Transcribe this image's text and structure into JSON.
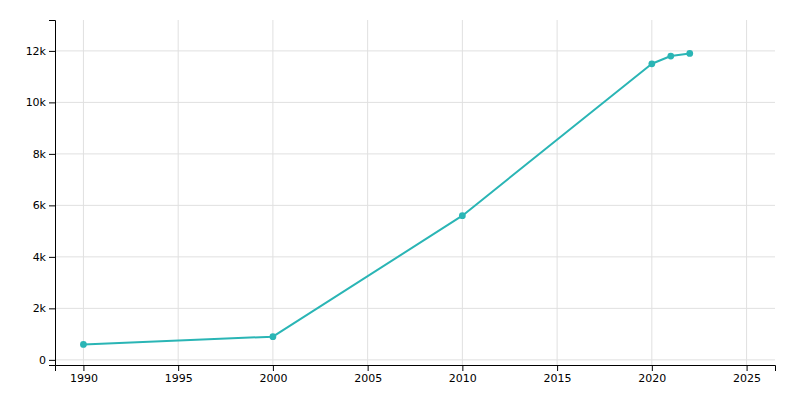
{
  "chart_data": {
    "type": "line",
    "x": [
      1990,
      2000,
      2010,
      2020,
      2021,
      2022
    ],
    "values": [
      600,
      900,
      5600,
      11500,
      11800,
      11900
    ],
    "color": "#2ab5b5",
    "marker": "circle",
    "xlim": [
      1988.5,
      2026.5
    ],
    "ylim": [
      -200,
      13200
    ],
    "xticks": [
      1990,
      1995,
      2000,
      2005,
      2010,
      2015,
      2020,
      2025
    ],
    "yticks": [
      0,
      {
        "value": 2000,
        "label": "2k"
      },
      {
        "value": 4000,
        "label": "4k"
      },
      {
        "value": 6000,
        "label": "6k"
      },
      {
        "value": 8000,
        "label": "8k"
      },
      {
        "value": 10000,
        "label": "10k"
      },
      {
        "value": 12000,
        "label": "12k"
      }
    ],
    "grid": true
  }
}
